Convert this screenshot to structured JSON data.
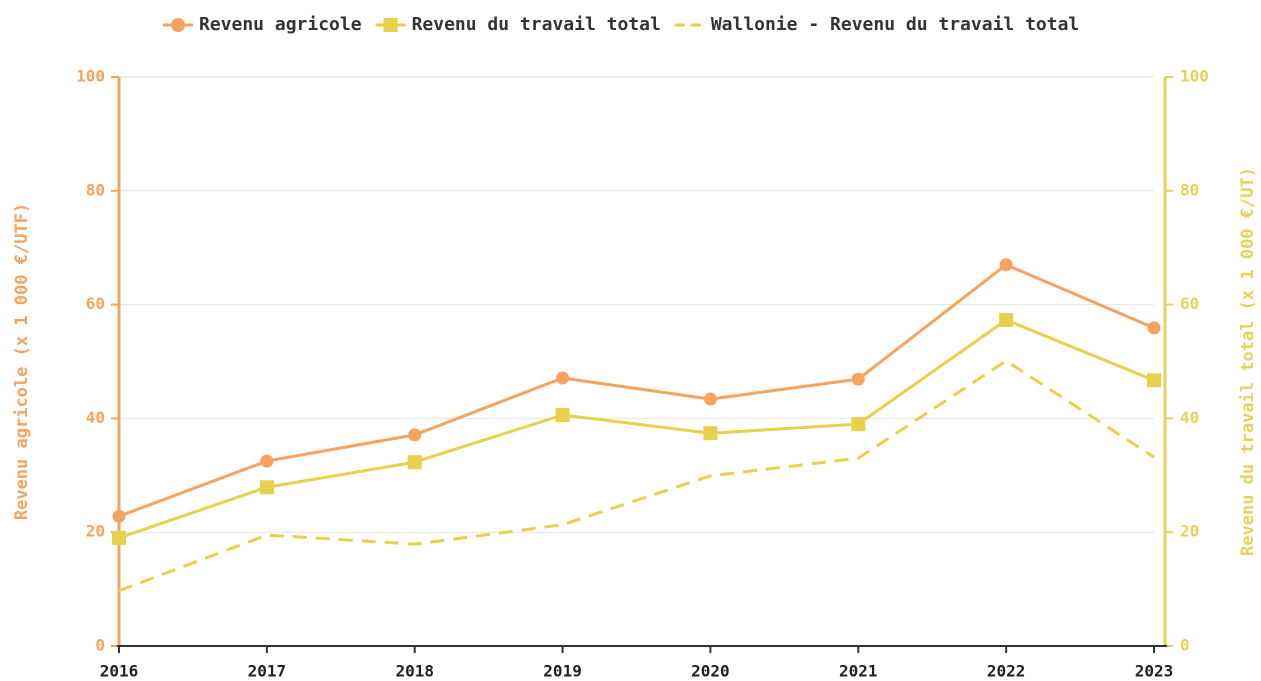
{
  "chart_data": {
    "type": "line",
    "categories": [
      "2016",
      "2017",
      "2018",
      "2019",
      "2020",
      "2021",
      "2022",
      "2023"
    ],
    "ylabel": "Revenu agricole (x 1 000 €/UTF)",
    "y2label": "Revenu du travail total (x 1 000 €/UT)",
    "ylim": [
      0,
      100
    ],
    "yticks": [
      0,
      20,
      40,
      60,
      80,
      100
    ],
    "y2lim": [
      0,
      100
    ],
    "y2ticks": [
      0,
      20,
      40,
      60,
      80,
      100
    ],
    "ycolor": "#f5a35e",
    "y2color": "#e6d25a",
    "grid": true,
    "legend": "top",
    "series": [
      {
        "name": "Revenu agricole",
        "color": "#f5a35e",
        "marker": "circle",
        "axis": "y",
        "values": [
          22.8,
          32.5,
          37.1,
          47.1,
          43.4,
          46.9,
          67.0,
          55.9
        ]
      },
      {
        "name": "Revenu du travail total",
        "color": "#e6d04c",
        "marker": "square",
        "axis": "y2",
        "values": [
          19.0,
          27.9,
          32.3,
          40.6,
          37.4,
          39.0,
          57.3,
          46.7
        ]
      },
      {
        "name": "Wallonie - Revenu du travail total",
        "color": "#e6d04c",
        "dash": true,
        "axis": "y2",
        "values": [
          9.7,
          19.5,
          17.9,
          21.3,
          29.9,
          33.0,
          50.1,
          33.2
        ]
      }
    ]
  }
}
